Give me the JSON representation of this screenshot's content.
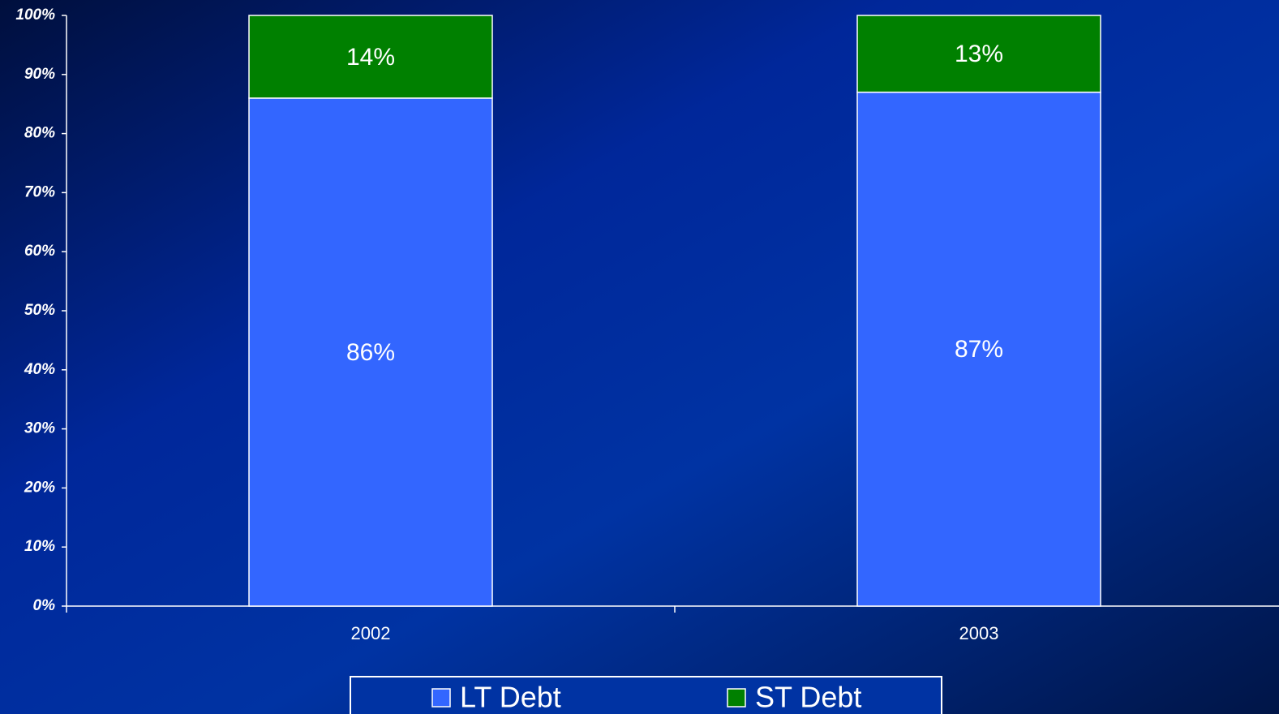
{
  "chart_data": {
    "type": "stacked_bar",
    "categories": [
      "2002",
      "2003"
    ],
    "series": [
      {
        "name": "LT Debt",
        "color": "#3366ff",
        "values": [
          86,
          87
        ],
        "value_labels": [
          "86%",
          "87%"
        ]
      },
      {
        "name": "ST Debt",
        "color": "#008000",
        "values": [
          14,
          13
        ],
        "value_labels": [
          "14%",
          "13%"
        ]
      }
    ],
    "ylim": [
      0,
      100
    ],
    "yticks": [
      {
        "value": 0,
        "label": "0%"
      },
      {
        "value": 10,
        "label": "10%"
      },
      {
        "value": 20,
        "label": "20%"
      },
      {
        "value": 30,
        "label": "30%"
      },
      {
        "value": 40,
        "label": "40%"
      },
      {
        "value": 50,
        "label": "50%"
      },
      {
        "value": 60,
        "label": "60%"
      },
      {
        "value": 70,
        "label": "70%"
      },
      {
        "value": 80,
        "label": "80%"
      },
      {
        "value": 90,
        "label": "90%"
      },
      {
        "value": 100,
        "label": "100%"
      }
    ],
    "grid": false,
    "legend": "bottom"
  }
}
